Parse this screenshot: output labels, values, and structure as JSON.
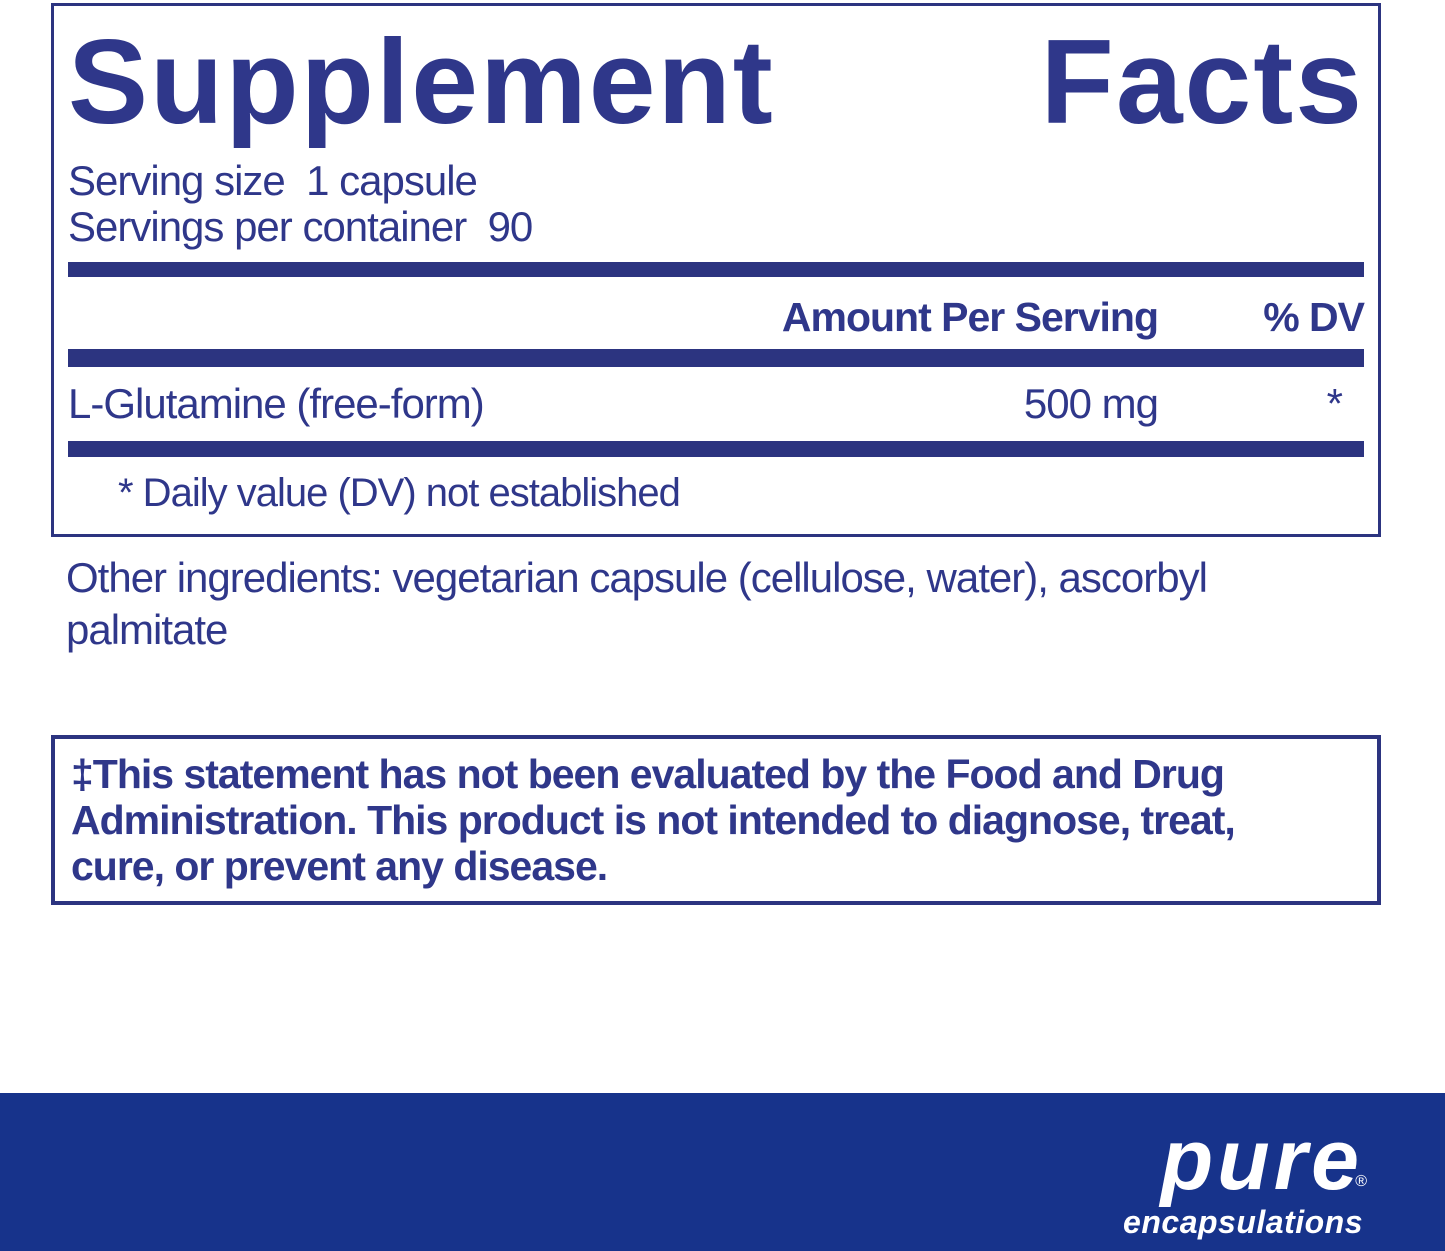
{
  "colors": {
    "ink": "#2F378A",
    "bar": "#2C3480",
    "footer_bg": "#17338B",
    "logo_text": "#FFFFFF"
  },
  "panel": {
    "title": "Supplement Facts",
    "title_word1": "Supplement",
    "title_word2": "Facts",
    "serving_size_line": "Serving size  1 capsule",
    "servings_per_container_line": "Servings per container  90",
    "header": {
      "amount_label": "Amount Per Serving",
      "dv_label": "% DV"
    },
    "rows": [
      {
        "name": "L-Glutamine (free-form)",
        "amount": "500 mg",
        "dv": "*"
      }
    ],
    "footnote": "* Daily value (DV) not established"
  },
  "other_ingredients": {
    "lines": [
      "Other ingredients: vegetarian capsule (cellulose, water), ascorbyl",
      "palmitate"
    ]
  },
  "disclaimer": {
    "lines": [
      "‡This statement has not been evaluated by the Food and Drug",
      "Administration. This product is not intended to diagnose, treat,",
      "cure, or prevent any disease."
    ]
  },
  "footer": {
    "brand_top": "pure",
    "brand_bottom": "encapsulations",
    "registered_mark": "®"
  }
}
